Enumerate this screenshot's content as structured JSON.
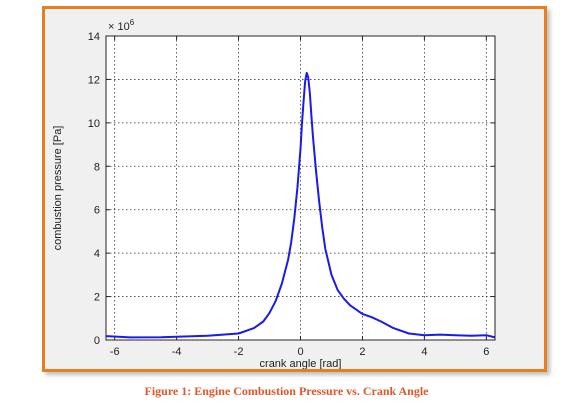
{
  "caption": "Figure 1: Engine Combustion Pressure vs. Crank Angle",
  "colors": {
    "frame_border": "#e87f1f",
    "caption": "#e2572a",
    "line": "#1a1aee",
    "plot_bg": "#ffffff",
    "figure_bg": "#f0f0f0"
  },
  "chart_data": {
    "type": "line",
    "title": "",
    "xlabel": "crank angle [rad]",
    "ylabel": "combustion pressure [Pa]",
    "y_multiplier_label": "× 10",
    "y_multiplier_exponent": "6",
    "xlim": [
      -6.28,
      6.28
    ],
    "ylim": [
      0,
      14
    ],
    "xticks": [
      -6,
      -4,
      -2,
      0,
      2,
      4,
      6
    ],
    "yticks": [
      0,
      2,
      4,
      6,
      8,
      10,
      12,
      14
    ],
    "grid": true,
    "series": [
      {
        "x": [
          -6.28,
          -5.5,
          -4.5,
          -4.0,
          -3.0,
          -2.5,
          -2.0,
          -1.5,
          -1.2,
          -1.0,
          -0.8,
          -0.6,
          -0.4,
          -0.3,
          -0.2,
          -0.1,
          0.0,
          0.05,
          0.1,
          0.15,
          0.2,
          0.25,
          0.3,
          0.35,
          0.4,
          0.5,
          0.6,
          0.7,
          0.8,
          1.0,
          1.2,
          1.4,
          1.6,
          1.8,
          2.0,
          2.3,
          2.6,
          3.0,
          3.5,
          4.0,
          4.5,
          5.0,
          5.5,
          6.0,
          6.28
        ],
        "y": [
          0.18,
          0.12,
          0.13,
          0.15,
          0.2,
          0.25,
          0.3,
          0.55,
          0.85,
          1.25,
          1.8,
          2.6,
          3.7,
          4.5,
          5.6,
          7.0,
          8.8,
          10.0,
          11.0,
          11.9,
          12.3,
          12.1,
          11.4,
          10.4,
          9.4,
          7.8,
          6.4,
          5.2,
          4.2,
          3.0,
          2.3,
          1.9,
          1.6,
          1.4,
          1.2,
          1.05,
          0.85,
          0.55,
          0.3,
          0.22,
          0.25,
          0.22,
          0.2,
          0.22,
          0.12
        ]
      }
    ]
  }
}
